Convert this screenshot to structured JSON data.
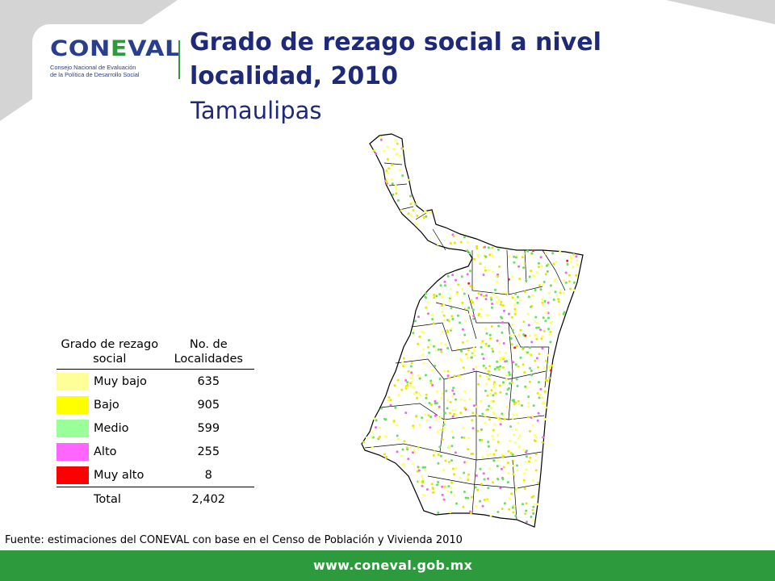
{
  "header": {
    "logo_word_start": "CON",
    "logo_word_l": "E",
    "logo_word_end": "VAL",
    "logo_subtitle_line1": "Consejo Nacional de Evaluación",
    "logo_subtitle_line2": "de la Política de Desarrollo Social",
    "title": "Grado de rezago social a nivel localidad, 2010",
    "subtitle": "Tamaulipas"
  },
  "legend": {
    "col1_header": "Grado de rezago social",
    "col2_header": "No. de Localidades",
    "rows": [
      {
        "label": "Muy bajo",
        "value": "635",
        "color": "#ffff99"
      },
      {
        "label": "Bajo",
        "value": "905",
        "color": "#ffff00"
      },
      {
        "label": "Medio",
        "value": "599",
        "color": "#99ff99"
      },
      {
        "label": "Alto",
        "value": "255",
        "color": "#ff66ff"
      },
      {
        "label": "Muy alto",
        "value": "8",
        "color": "#ff0000"
      }
    ],
    "total_label": "Total",
    "total_value": "2,402"
  },
  "source": "Fuente: estimaciones del CONEVAL con base en el Censo de Población y Vivienda 2010",
  "footer": {
    "url": "www.coneval.gob.mx",
    "color": "#2e9a3e"
  },
  "colors": {
    "title": "#1e2a78",
    "logo_blue": "#2a3f8c",
    "logo_green": "#2e9a3e"
  }
}
